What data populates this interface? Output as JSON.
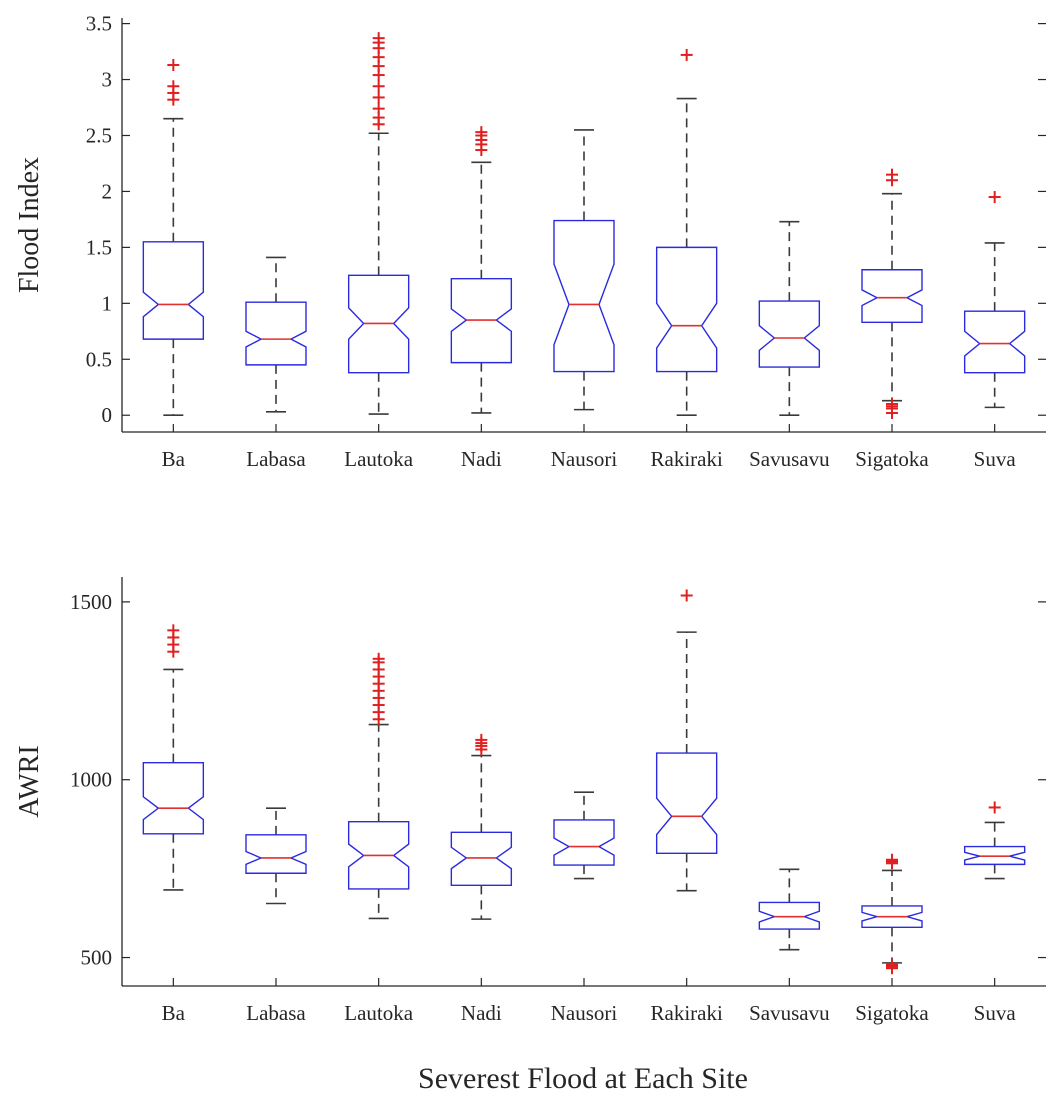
{
  "figure": {
    "xlabel": "Severest Flood at Each Site"
  },
  "colors": {
    "box": "#2a2ae0",
    "median": "#e03030",
    "whisker": "#3a3a3a",
    "outlier": "#e02020",
    "axis": "#262626"
  },
  "chart_data": [
    {
      "type": "box",
      "variant": "notched",
      "title": "",
      "xlabel": "",
      "ylabel": "Flood Index",
      "ylim": [
        -0.15,
        3.55
      ],
      "yticks": [
        0,
        0.5,
        1,
        1.5,
        2,
        2.5,
        3,
        3.5
      ],
      "ytick_labels": [
        "0",
        "0.5",
        "1",
        "1.5",
        "2",
        "2.5",
        "3",
        "3.5"
      ],
      "categories": [
        "Ba",
        "Labasa",
        "Lautoka",
        "Nadi",
        "Nausori",
        "Rakiraki",
        "Savusavu",
        "Sigatoka",
        "Suva"
      ],
      "boxes": [
        {
          "site": "Ba",
          "whisker_low": 0.0,
          "q1": 0.68,
          "median": 0.99,
          "q3": 1.55,
          "whisker_high": 2.65,
          "notch_low": 0.88,
          "notch_high": 1.1,
          "outliers": [
            2.82,
            2.88,
            2.94,
            3.13
          ]
        },
        {
          "site": "Labasa",
          "whisker_low": 0.03,
          "q1": 0.45,
          "median": 0.68,
          "q3": 1.01,
          "whisker_high": 1.41,
          "notch_low": 0.61,
          "notch_high": 0.75,
          "outliers": []
        },
        {
          "site": "Lautoka",
          "whisker_low": 0.01,
          "q1": 0.38,
          "median": 0.82,
          "q3": 1.25,
          "whisker_high": 2.52,
          "notch_low": 0.68,
          "notch_high": 0.96,
          "outliers": [
            2.6,
            2.66,
            2.74,
            2.84,
            2.94,
            3.04,
            3.12,
            3.2,
            3.28,
            3.33,
            3.37
          ]
        },
        {
          "site": "Nadi",
          "whisker_low": 0.02,
          "q1": 0.47,
          "median": 0.85,
          "q3": 1.22,
          "whisker_high": 2.26,
          "notch_low": 0.75,
          "notch_high": 0.95,
          "outliers": [
            2.37,
            2.42,
            2.46,
            2.5,
            2.53
          ]
        },
        {
          "site": "Nausori",
          "whisker_low": 0.05,
          "q1": 0.39,
          "median": 0.99,
          "q3": 1.74,
          "whisker_high": 2.55,
          "notch_low": 0.63,
          "notch_high": 1.35,
          "outliers": []
        },
        {
          "site": "Rakiraki",
          "whisker_low": 0.0,
          "q1": 0.39,
          "median": 0.8,
          "q3": 1.5,
          "whisker_high": 2.83,
          "notch_low": 0.6,
          "notch_high": 1.0,
          "outliers": [
            3.22
          ]
        },
        {
          "site": "Savusavu",
          "whisker_low": 0.0,
          "q1": 0.43,
          "median": 0.69,
          "q3": 1.02,
          "whisker_high": 1.73,
          "notch_low": 0.58,
          "notch_high": 0.8,
          "outliers": []
        },
        {
          "site": "Sigatoka",
          "whisker_low": 0.13,
          "q1": 0.83,
          "median": 1.05,
          "q3": 1.3,
          "whisker_high": 1.98,
          "notch_low": 0.98,
          "notch_high": 1.12,
          "outliers": [
            0.02,
            0.06,
            0.08,
            0.1,
            2.1,
            2.15
          ]
        },
        {
          "site": "Suva",
          "whisker_low": 0.07,
          "q1": 0.38,
          "median": 0.64,
          "q3": 0.93,
          "whisker_high": 1.54,
          "notch_low": 0.53,
          "notch_high": 0.75,
          "outliers": [
            1.95
          ]
        }
      ]
    },
    {
      "type": "box",
      "variant": "notched",
      "title": "",
      "xlabel": "",
      "ylabel": "AWRI",
      "ylim": [
        420,
        1570
      ],
      "yticks": [
        500,
        1000,
        1500
      ],
      "ytick_labels": [
        "500",
        "1000",
        "1500"
      ],
      "categories": [
        "Ba",
        "Labasa",
        "Lautoka",
        "Nadi",
        "Nausori",
        "Rakiraki",
        "Savusavu",
        "Sigatoka",
        "Suva"
      ],
      "boxes": [
        {
          "site": "Ba",
          "whisker_low": 690,
          "q1": 848,
          "median": 920,
          "q3": 1048,
          "whisker_high": 1310,
          "notch_low": 888,
          "notch_high": 952,
          "outliers": [
            1360,
            1380,
            1400,
            1420
          ]
        },
        {
          "site": "Labasa",
          "whisker_low": 652,
          "q1": 737,
          "median": 780,
          "q3": 845,
          "whisker_high": 920,
          "notch_low": 762,
          "notch_high": 798,
          "outliers": []
        },
        {
          "site": "Lautoka",
          "whisker_low": 610,
          "q1": 693,
          "median": 787,
          "q3": 882,
          "whisker_high": 1155,
          "notch_low": 755,
          "notch_high": 819,
          "outliers": [
            1170,
            1190,
            1210,
            1230,
            1250,
            1270,
            1290,
            1310,
            1330,
            1340
          ]
        },
        {
          "site": "Nadi",
          "whisker_low": 608,
          "q1": 703,
          "median": 780,
          "q3": 852,
          "whisker_high": 1068,
          "notch_low": 750,
          "notch_high": 810,
          "outliers": [
            1085,
            1095,
            1103,
            1112
          ]
        },
        {
          "site": "Nausori",
          "whisker_low": 722,
          "q1": 760,
          "median": 812,
          "q3": 887,
          "whisker_high": 965,
          "notch_low": 788,
          "notch_high": 836,
          "outliers": []
        },
        {
          "site": "Rakiraki",
          "whisker_low": 688,
          "q1": 793,
          "median": 897,
          "q3": 1075,
          "whisker_high": 1415,
          "notch_low": 846,
          "notch_high": 948,
          "outliers": [
            1518
          ]
        },
        {
          "site": "Savusavu",
          "whisker_low": 522,
          "q1": 580,
          "median": 615,
          "q3": 655,
          "whisker_high": 748,
          "notch_low": 600,
          "notch_high": 630,
          "outliers": []
        },
        {
          "site": "Sigatoka",
          "whisker_low": 485,
          "q1": 585,
          "median": 615,
          "q3": 645,
          "whisker_high": 745,
          "notch_low": 603,
          "notch_high": 627,
          "outliers": [
            470,
            475,
            480,
            765,
            770,
            775
          ]
        },
        {
          "site": "Suva",
          "whisker_low": 722,
          "q1": 762,
          "median": 785,
          "q3": 812,
          "whisker_high": 880,
          "notch_low": 774,
          "notch_high": 796,
          "outliers": [
            922
          ]
        }
      ]
    }
  ]
}
